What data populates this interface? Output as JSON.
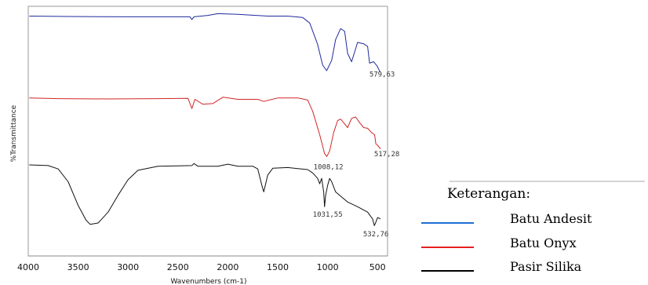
{
  "chart_data": {
    "type": "line",
    "title": "",
    "xlabel": "Wavenumbers (cm-1)",
    "ylabel": "%Transmittance",
    "xlim": [
      4000,
      400
    ],
    "x_ticks": [
      "4000",
      "3500",
      "3000",
      "2500",
      "2000",
      "1500",
      "1000",
      "500"
    ],
    "grid": false,
    "legend": {
      "title": "Keterangan:",
      "placement": "right",
      "entries": [
        {
          "name": "Batu Andesit",
          "color": "#1f6fd6"
        },
        {
          "name": "Batu Onyx",
          "color": "#e62020"
        },
        {
          "name": "Pasir Silika",
          "color": "#000000"
        }
      ]
    },
    "series": [
      {
        "name": "Batu Andesit",
        "color": "#1e2a9c",
        "points": [
          [
            3990,
            0.04
          ],
          [
            3600,
            0.045
          ],
          [
            3000,
            0.05
          ],
          [
            2500,
            0.05
          ],
          [
            2380,
            0.05
          ],
          [
            2360,
            0.09
          ],
          [
            2340,
            0.05
          ],
          [
            2200,
            0.03
          ],
          [
            2100,
            0.005
          ],
          [
            1900,
            0.015
          ],
          [
            1600,
            0.04
          ],
          [
            1400,
            0.04
          ],
          [
            1250,
            0.06
          ],
          [
            1180,
            0.14
          ],
          [
            1100,
            0.45
          ],
          [
            1050,
            0.75
          ],
          [
            1010,
            0.83
          ],
          [
            960,
            0.68
          ],
          [
            920,
            0.38
          ],
          [
            870,
            0.22
          ],
          [
            830,
            0.26
          ],
          [
            800,
            0.58
          ],
          [
            760,
            0.7
          ],
          [
            700,
            0.42
          ],
          [
            640,
            0.44
          ],
          [
            600,
            0.48
          ],
          [
            580,
            0.72
          ],
          [
            540,
            0.7
          ],
          [
            505,
            0.76
          ],
          [
            475,
            0.85
          ]
        ],
        "peak_labels": [
          {
            "x": 579.63,
            "label": "579,63"
          }
        ]
      },
      {
        "name": "Batu Onyx",
        "color": "#d02626",
        "points": [
          [
            3990,
            0.03
          ],
          [
            3700,
            0.04
          ],
          [
            3200,
            0.045
          ],
          [
            2700,
            0.04
          ],
          [
            2400,
            0.035
          ],
          [
            2360,
            0.18
          ],
          [
            2330,
            0.05
          ],
          [
            2250,
            0.12
          ],
          [
            2150,
            0.11
          ],
          [
            2050,
            0.02
          ],
          [
            1900,
            0.05
          ],
          [
            1700,
            0.05
          ],
          [
            1640,
            0.08
          ],
          [
            1500,
            0.03
          ],
          [
            1300,
            0.03
          ],
          [
            1200,
            0.06
          ],
          [
            1150,
            0.22
          ],
          [
            1080,
            0.55
          ],
          [
            1030,
            0.82
          ],
          [
            1008,
            0.86
          ],
          [
            980,
            0.78
          ],
          [
            940,
            0.52
          ],
          [
            900,
            0.35
          ],
          [
            870,
            0.33
          ],
          [
            840,
            0.38
          ],
          [
            800,
            0.45
          ],
          [
            760,
            0.32
          ],
          [
            720,
            0.3
          ],
          [
            680,
            0.38
          ],
          [
            640,
            0.45
          ],
          [
            600,
            0.46
          ],
          [
            560,
            0.52
          ],
          [
            530,
            0.55
          ],
          [
            517,
            0.68
          ],
          [
            500,
            0.7
          ],
          [
            470,
            0.75
          ]
        ],
        "peak_labels": [
          {
            "x": 1008.12,
            "label": "1008,12"
          },
          {
            "x": 517.28,
            "label": "517,28"
          }
        ]
      },
      {
        "name": "Pasir Silika",
        "color": "#111111",
        "points": [
          [
            3990,
            0.0
          ],
          [
            3800,
            0.01
          ],
          [
            3700,
            0.06
          ],
          [
            3600,
            0.25
          ],
          [
            3500,
            0.6
          ],
          [
            3420,
            0.82
          ],
          [
            3380,
            0.88
          ],
          [
            3300,
            0.86
          ],
          [
            3200,
            0.7
          ],
          [
            3100,
            0.45
          ],
          [
            3000,
            0.22
          ],
          [
            2900,
            0.08
          ],
          [
            2700,
            0.02
          ],
          [
            2500,
            0.015
          ],
          [
            2360,
            0.01
          ],
          [
            2340,
            -0.02
          ],
          [
            2300,
            0.02
          ],
          [
            2100,
            0.02
          ],
          [
            2000,
            -0.01
          ],
          [
            1900,
            0.02
          ],
          [
            1750,
            0.02
          ],
          [
            1700,
            0.06
          ],
          [
            1660,
            0.3
          ],
          [
            1640,
            0.4
          ],
          [
            1600,
            0.15
          ],
          [
            1550,
            0.05
          ],
          [
            1400,
            0.04
          ],
          [
            1200,
            0.07
          ],
          [
            1150,
            0.12
          ],
          [
            1100,
            0.2
          ],
          [
            1080,
            0.28
          ],
          [
            1060,
            0.2
          ],
          [
            1040,
            0.4
          ],
          [
            1031,
            0.62
          ],
          [
            1020,
            0.45
          ],
          [
            1000,
            0.3
          ],
          [
            980,
            0.2
          ],
          [
            960,
            0.25
          ],
          [
            920,
            0.4
          ],
          [
            880,
            0.45
          ],
          [
            800,
            0.55
          ],
          [
            700,
            0.62
          ],
          [
            600,
            0.7
          ],
          [
            550,
            0.8
          ],
          [
            532,
            0.9
          ],
          [
            515,
            0.84
          ],
          [
            500,
            0.78
          ],
          [
            470,
            0.8
          ]
        ],
        "peak_labels": [
          {
            "x": 1031.55,
            "label": "1031,55"
          },
          {
            "x": 532.76,
            "label": "532,76"
          }
        ]
      }
    ]
  }
}
